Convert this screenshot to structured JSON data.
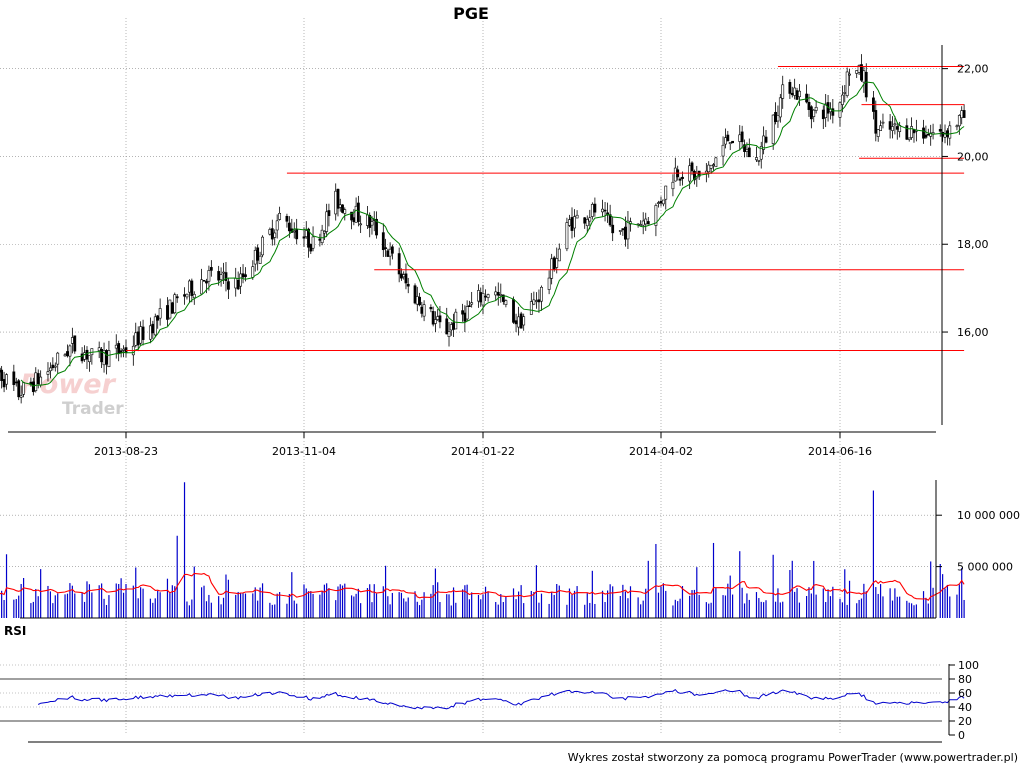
{
  "chart_data": [
    {
      "type": "candlestick",
      "title": "PGE",
      "x_ticks": [
        "2013-08-23",
        "2013-11-04",
        "2014-01-22",
        "2014-04-02",
        "2014-06-16"
      ],
      "y_ticks": [
        "16,00",
        "18,00",
        "20,00",
        "22,00"
      ],
      "ylim": [
        14.5,
        22.8
      ],
      "grid": true,
      "watermark": [
        "Power",
        "Trader"
      ],
      "moving_average": {
        "color": "#008000"
      },
      "support_resistance_lines": [
        {
          "from_date": "2013-08-23",
          "to_date": "2014-08-07",
          "y": 15.58
        },
        {
          "from_date": "2013-12-05",
          "to_date": "2014-08-07",
          "y": 17.42
        },
        {
          "from_date": "2013-10-28",
          "to_date": "2014-08-07",
          "y": 19.62
        },
        {
          "from_date": "2014-05-21",
          "to_date": "2014-08-07",
          "y": 22.05
        },
        {
          "from_date": "2014-06-25",
          "to_date": "2014-08-07",
          "y": 21.18
        },
        {
          "from_date": "2014-06-24",
          "to_date": "2014-08-07",
          "y": 19.96
        }
      ],
      "line_color": "#ff0000",
      "price_keyframes": [
        {
          "date": "2013-06-28",
          "value": 15.3
        },
        {
          "date": "2013-07-10",
          "value": 14.6
        },
        {
          "date": "2013-07-20",
          "value": 15.0
        },
        {
          "date": "2013-08-01",
          "value": 15.7
        },
        {
          "date": "2013-08-10",
          "value": 15.4
        },
        {
          "date": "2013-08-23",
          "value": 15.6
        },
        {
          "date": "2013-09-05",
          "value": 16.3
        },
        {
          "date": "2013-09-25",
          "value": 17.3
        },
        {
          "date": "2013-10-08",
          "value": 17.1
        },
        {
          "date": "2013-10-25",
          "value": 18.6
        },
        {
          "date": "2013-11-08",
          "value": 18.0
        },
        {
          "date": "2013-11-18",
          "value": 19.0
        },
        {
          "date": "2013-12-05",
          "value": 18.4
        },
        {
          "date": "2013-12-20",
          "value": 17.0
        },
        {
          "date": "2014-01-05",
          "value": 16.0
        },
        {
          "date": "2014-01-15",
          "value": 16.5
        },
        {
          "date": "2014-01-25",
          "value": 17.0
        },
        {
          "date": "2014-02-05",
          "value": 16.2
        },
        {
          "date": "2014-02-15",
          "value": 17.0
        },
        {
          "date": "2014-02-25",
          "value": 18.5
        },
        {
          "date": "2014-03-08",
          "value": 18.8
        },
        {
          "date": "2014-03-15",
          "value": 18.2
        },
        {
          "date": "2014-03-30",
          "value": 18.7
        },
        {
          "date": "2014-04-08",
          "value": 19.7
        },
        {
          "date": "2014-04-20",
          "value": 19.5
        },
        {
          "date": "2014-05-01",
          "value": 20.5
        },
        {
          "date": "2014-05-12",
          "value": 19.9
        },
        {
          "date": "2014-05-25",
          "value": 21.7
        },
        {
          "date": "2014-06-05",
          "value": 21.0
        },
        {
          "date": "2014-06-15",
          "value": 21.1
        },
        {
          "date": "2014-06-20",
          "value": 22.0
        },
        {
          "date": "2014-06-26",
          "value": 21.8
        },
        {
          "date": "2014-07-01",
          "value": 20.6
        },
        {
          "date": "2014-07-15",
          "value": 20.6
        },
        {
          "date": "2014-07-28",
          "value": 20.5
        },
        {
          "date": "2014-08-07",
          "value": 20.9
        }
      ]
    },
    {
      "type": "bar",
      "title": "",
      "y_ticks": [
        "5 000 000",
        "10 000 000"
      ],
      "ylim": [
        0,
        13500000
      ],
      "bar_color": "#0000cc",
      "average_line_color": "#ff0000",
      "spikes": [
        {
          "date": "2013-07-05",
          "value": 6200000
        },
        {
          "date": "2013-09-13",
          "value": 8000000
        },
        {
          "date": "2013-09-16",
          "value": 13200000
        },
        {
          "date": "2013-09-21",
          "value": 7800000
        },
        {
          "date": "2014-03-31",
          "value": 7200000
        },
        {
          "date": "2014-04-24",
          "value": 7300000
        },
        {
          "date": "2014-05-05",
          "value": 6500000
        },
        {
          "date": "2014-06-28",
          "value": 8400000
        },
        {
          "date": "2014-06-30",
          "value": 12400000
        },
        {
          "date": "2014-07-24",
          "value": 5500000
        }
      ]
    },
    {
      "type": "line",
      "title": "RSI",
      "y_ticks": [
        "0",
        "20",
        "40",
        "60",
        "80",
        "100"
      ],
      "ylim": [
        0,
        100
      ],
      "reference_lines": [
        20,
        80
      ],
      "line_color": "#0000cc"
    }
  ],
  "footer": "Wykres został stworzony za pomocą programu PowerTrader (www.powertrader.pl)"
}
